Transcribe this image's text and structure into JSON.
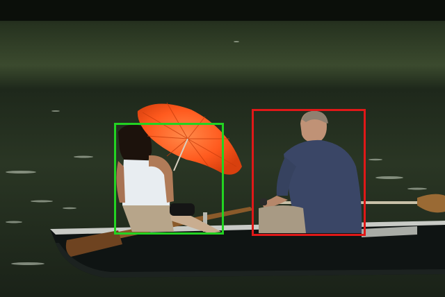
{
  "scene": {
    "description_colors": {
      "water_dark": "#1a2418",
      "water_mid": "#2f3f26",
      "bank_top": "#0b0f0a",
      "umbrella": "#ff5a1e",
      "boat_hull": "#101514",
      "boat_trim": "#c8c8c8",
      "shirt_man": "#3a4666",
      "top_woman": "#e9eef2",
      "oar": "#8a5a2a"
    }
  },
  "annotations": {
    "boxes": [
      {
        "label_color": "#22d322",
        "subject": "woman-with-umbrella"
      },
      {
        "label_color": "#e01818",
        "subject": "man-rowing"
      }
    ]
  }
}
